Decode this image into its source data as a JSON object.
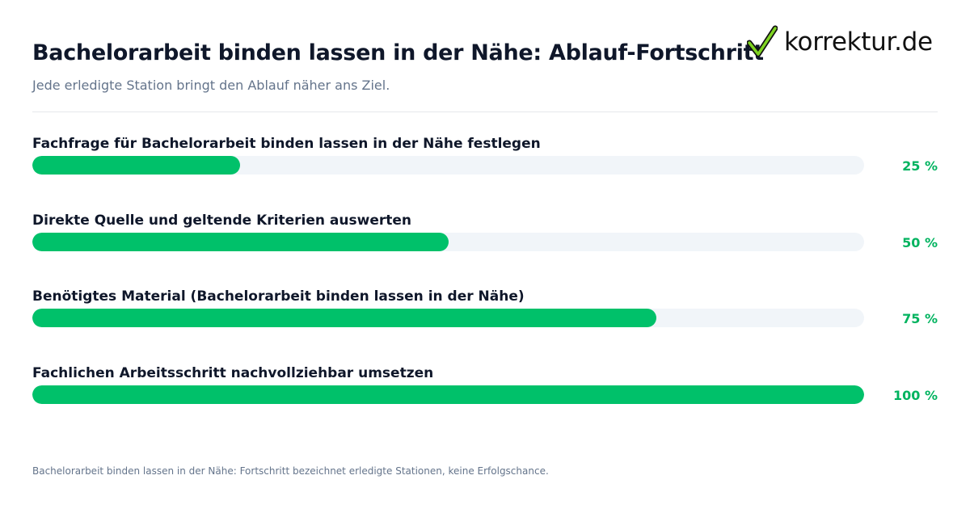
{
  "header": {
    "title": "Bachelorarbeit binden lassen in der Nähe: Ablauf-Fortschritt",
    "subtitle": "Jede erledigte Station bringt den Ablauf näher ans Ziel."
  },
  "logo": {
    "icon": "checkmark-icon",
    "text": "korrektur.de"
  },
  "colors": {
    "accent": "#00c16a",
    "track": "#f1f5f9",
    "percent_text": "#00b35f"
  },
  "chart_data": {
    "type": "bar",
    "orientation": "horizontal",
    "categories": [
      "Fachfrage für Bachelorarbeit binden lassen in der Nähe festlegen",
      "Direkte Quelle und geltende Kriterien auswerten",
      "Benötigtes Material (Bachelorarbeit binden lassen in der Nähe)",
      "Fachlichen Arbeitsschritt nachvollziehbar umsetzen"
    ],
    "values": [
      25,
      50,
      75,
      100
    ],
    "value_labels": [
      "25 %",
      "50 %",
      "75 %",
      "100 %"
    ],
    "xlim": [
      0,
      100
    ]
  },
  "footnote": "Bachelorarbeit binden lassen in der Nähe: Fortschritt bezeichnet erledigte Stationen, keine Erfolgschance."
}
